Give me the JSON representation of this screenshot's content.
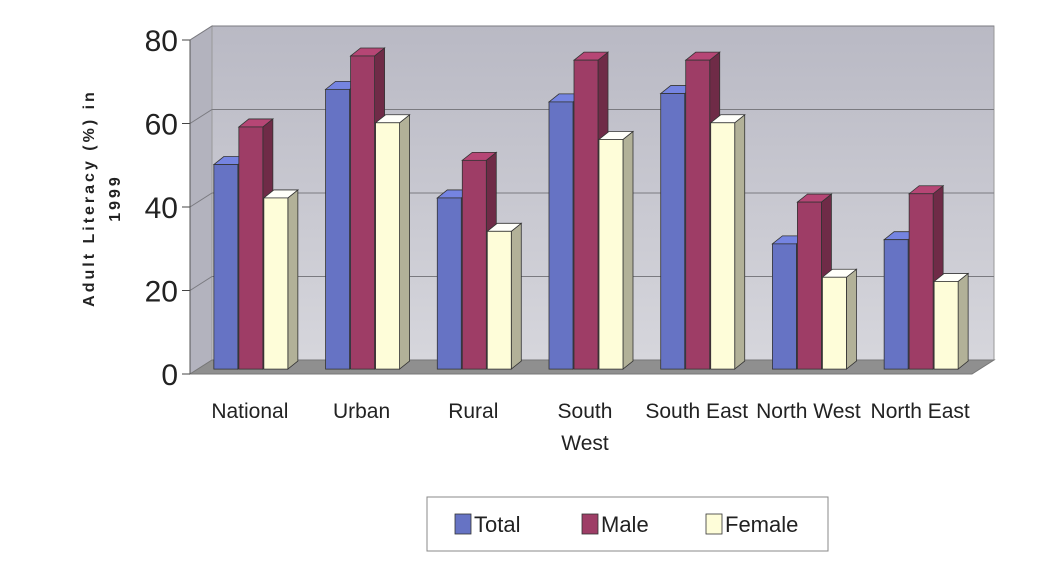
{
  "chart_data": {
    "type": "bar",
    "style": "3d-clustered",
    "categories": [
      "National",
      "Urban",
      "Rural",
      "South West",
      "South East",
      "North West",
      "North East"
    ],
    "series": [
      {
        "name": "Total",
        "values": [
          49,
          67,
          41,
          64,
          66,
          30,
          31
        ],
        "color": "#6673c4"
      },
      {
        "name": "Male",
        "values": [
          58,
          75,
          50,
          74,
          74,
          40,
          42
        ],
        "color": "#9e3d66"
      },
      {
        "name": "Female",
        "values": [
          41,
          59,
          33,
          55,
          59,
          22,
          21
        ],
        "color": "#fefdd9"
      }
    ],
    "title": "",
    "xlabel": "",
    "ylabel": "Adult Literacy (%) in 1999",
    "ylabel_lines": [
      "Adult Literacy (%) in",
      "1999"
    ],
    "ylim": [
      0,
      80
    ],
    "yticks": [
      "0",
      "20",
      "40",
      "60",
      "80"
    ],
    "grid": true,
    "legend_position": "bottom-center",
    "colors": {
      "wall": "#c9c9d2",
      "floor": "#8f8f8f",
      "gridline": "#7a7a80"
    }
  }
}
